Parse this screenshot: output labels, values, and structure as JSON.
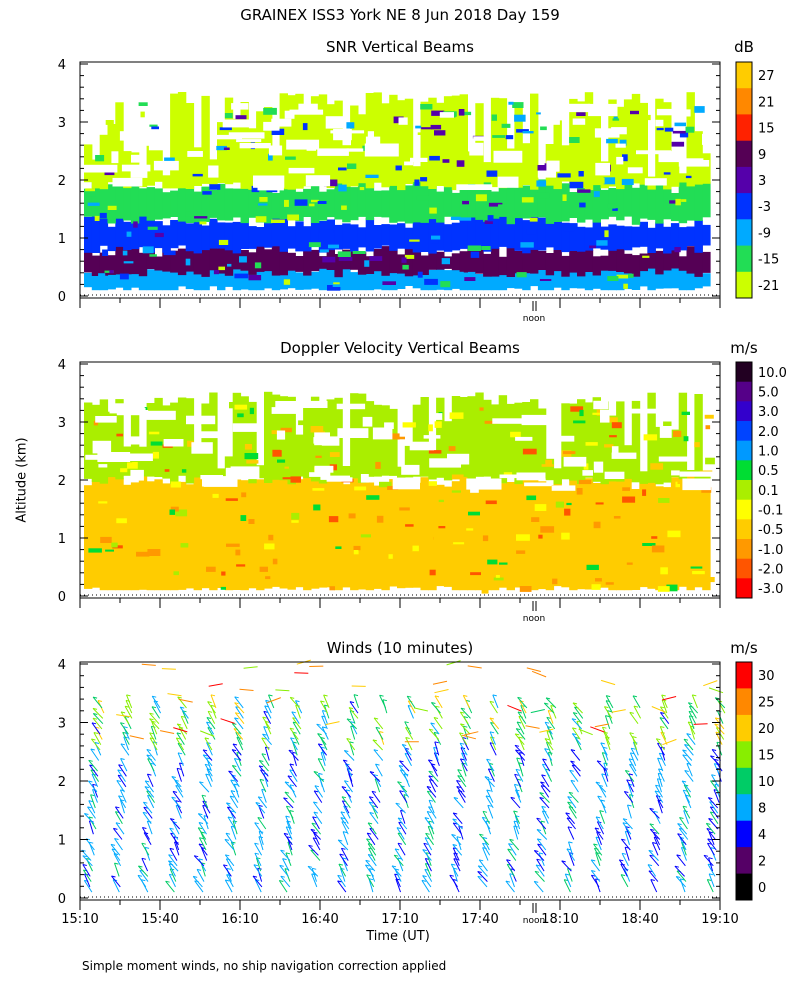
{
  "title": "GRAINEX ISS3 York NE   8 Jun 2018 Day 159",
  "y_axis_label": "Altitude (km)",
  "x_axis_label": "Time (UT)",
  "noon_label": "noon",
  "footnote": "Simple moment winds, no ship navigation correction applied",
  "chart_data": [
    {
      "type": "heatmap",
      "title": "SNR Vertical Beams",
      "unit": "dB",
      "ylim": [
        0,
        4
      ],
      "yticks": [
        0,
        1,
        2,
        3,
        4
      ],
      "colorbar": {
        "labels": [
          "27",
          "21",
          "15",
          "9",
          "3",
          "-3",
          "-9",
          "-15",
          "-21"
        ],
        "colors": [
          "#ffcc00",
          "#ff8800",
          "#ff2200",
          "#550055",
          "#5500aa",
          "#0033ff",
          "#00aaff",
          "#22dd55",
          "#ccff00"
        ]
      },
      "layers_by_altitude_km": [
        {
          "from": 0.1,
          "to": 0.5,
          "snr_db": -9
        },
        {
          "from": 0.4,
          "to": 0.8,
          "snr_db": 9
        },
        {
          "from": 0.8,
          "to": 1.3,
          "snr_db": -3
        },
        {
          "from": 1.3,
          "to": 1.9,
          "snr_db": -15
        },
        {
          "from": 1.9,
          "to": 3.4,
          "snr_db": -21
        }
      ]
    },
    {
      "type": "heatmap",
      "title": "Doppler Velocity Vertical Beams",
      "unit": "m/s",
      "ylim": [
        0,
        4
      ],
      "yticks": [
        0,
        1,
        2,
        3,
        4
      ],
      "colorbar": {
        "labels": [
          "10.0",
          "5.0",
          "3.0",
          "2.0",
          "1.0",
          "0.5",
          "0.1",
          "-0.1",
          "-0.5",
          "-1.0",
          "-2.0",
          "-3.0"
        ],
        "colors": [
          "#220022",
          "#550088",
          "#3300cc",
          "#0044ff",
          "#0099ff",
          "#00dd33",
          "#aaee00",
          "#ffff00",
          "#ffcc00",
          "#ff9900",
          "#ff5500",
          "#ff0000"
        ]
      },
      "layers_by_altitude_km": [
        {
          "from": 0.1,
          "to": 2.0,
          "velocity_ms": -0.5
        },
        {
          "from": 2.0,
          "to": 3.4,
          "velocity_ms": 0.1
        }
      ]
    },
    {
      "type": "scatter",
      "title": "Winds (10 minutes)",
      "unit": "m/s",
      "ylim": [
        0,
        4
      ],
      "yticks": [
        0,
        1,
        2,
        3,
        4
      ],
      "x_ticklabels": [
        "15:10",
        "15:40",
        "16:10",
        "16:40",
        "17:10",
        "17:40",
        "18:10",
        "18:40",
        "19:10"
      ],
      "colorbar": {
        "labels": [
          "30",
          "25",
          "20",
          "15",
          "10",
          "8",
          "4",
          "2",
          "0"
        ],
        "colors": [
          "#ff0000",
          "#ff8800",
          "#ffcc00",
          "#88ee00",
          "#00cc66",
          "#00aaff",
          "#0000ff",
          "#550066",
          "#000000"
        ]
      },
      "wind_columns": 23,
      "typical_speed_ms": 6
    }
  ]
}
